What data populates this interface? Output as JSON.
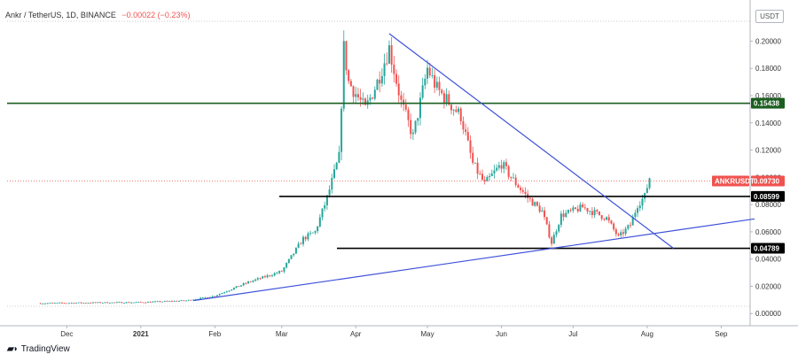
{
  "header": {
    "symbol_line": "Ankr / TetherUS, 1D, BINANCE",
    "change": "−0.00022 (−0.23%)"
  },
  "currency_badge": "USDT",
  "branding": {
    "name": "TradingView",
    "logo_icon": "tradingview-logo-icon"
  },
  "chart_data": {
    "type": "candlestick",
    "symbol": "ANKRUSDT",
    "exchange": "BINANCE",
    "timeframe": "1D",
    "x_ticks": [
      "Dec",
      "2021",
      "Feb",
      "Mar",
      "Apr",
      "May",
      "Jun",
      "Jul",
      "Aug",
      "Sep"
    ],
    "y_ticks": [
      "0.00000",
      "0.02000",
      "0.04000",
      "0.06000",
      "0.08000",
      "0.10000",
      "0.12000",
      "0.14000",
      "0.16000",
      "0.18000",
      "0.20000"
    ],
    "ylim": [
      -0.007,
      0.225
    ],
    "grid": false,
    "last_price_label": "ANKRUSDT",
    "price_labels": [
      {
        "value": 0.15438,
        "text": "0.15438",
        "color": "#1b5e20"
      },
      {
        "value": 0.0973,
        "text": "0.09730",
        "color": "#ef5350"
      },
      {
        "value": 0.08599,
        "text": "0.08599",
        "color": "#000000"
      },
      {
        "value": 0.04789,
        "text": "0.04789",
        "color": "#000000"
      }
    ],
    "levels": [
      {
        "name": "resistance",
        "value": 0.15438,
        "color": "#1b5e20"
      },
      {
        "name": "support-upper",
        "value": 0.08599,
        "color": "#000000"
      },
      {
        "name": "support-lower",
        "value": 0.04789,
        "color": "#000000"
      }
    ],
    "trendlines": [
      {
        "name": "descending",
        "from": [
          "2021-04-15",
          0.2055
        ],
        "to": [
          "2021-08-12",
          0.0479
        ],
        "color": "#3f51d9"
      },
      {
        "name": "ascending",
        "from": [
          "2021-01-23",
          0.0095
        ],
        "to": [
          "2021-09-15",
          0.0695
        ],
        "color": "#3f51d9"
      }
    ],
    "price_path": [
      [
        "2020-11-20",
        0.0075
      ],
      [
        "2020-12-15",
        0.008
      ],
      [
        "2021-01-01",
        0.0082
      ],
      [
        "2021-01-20",
        0.0095
      ],
      [
        "2021-02-01",
        0.013
      ],
      [
        "2021-02-15",
        0.023
      ],
      [
        "2021-03-01",
        0.031
      ],
      [
        "2021-03-10",
        0.055
      ],
      [
        "2021-03-15",
        0.06
      ],
      [
        "2021-03-20",
        0.085
      ],
      [
        "2021-03-25",
        0.115
      ],
      [
        "2021-03-27",
        0.195
      ],
      [
        "2021-03-29",
        0.17
      ],
      [
        "2021-04-05",
        0.15
      ],
      [
        "2021-04-10",
        0.17
      ],
      [
        "2021-04-15",
        0.195
      ],
      [
        "2021-04-20",
        0.155
      ],
      [
        "2021-04-25",
        0.13
      ],
      [
        "2021-05-01",
        0.18
      ],
      [
        "2021-05-05",
        0.165
      ],
      [
        "2021-05-10",
        0.155
      ],
      [
        "2021-05-15",
        0.145
      ],
      [
        "2021-05-20",
        0.11
      ],
      [
        "2021-05-25",
        0.095
      ],
      [
        "2021-06-01",
        0.11
      ],
      [
        "2021-06-05",
        0.1
      ],
      [
        "2021-06-12",
        0.085
      ],
      [
        "2021-06-18",
        0.075
      ],
      [
        "2021-06-22",
        0.052
      ],
      [
        "2021-06-26",
        0.072
      ],
      [
        "2021-07-05",
        0.078
      ],
      [
        "2021-07-15",
        0.07
      ],
      [
        "2021-07-20",
        0.056
      ],
      [
        "2021-07-25",
        0.065
      ],
      [
        "2021-07-28",
        0.08
      ],
      [
        "2021-07-31",
        0.086
      ],
      [
        "2021-08-02",
        0.1
      ],
      [
        "2021-08-05",
        0.093
      ],
      [
        "2021-08-12",
        0.0973
      ]
    ]
  }
}
